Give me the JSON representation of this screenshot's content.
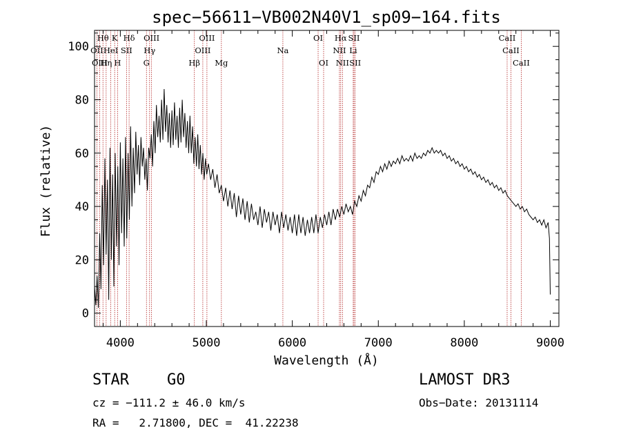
{
  "chart_data": {
    "type": "line",
    "title": "spec−56611−VB002N40V1_sp09−164.fits",
    "xlabel": "Wavelength (Å)",
    "ylabel": "Flux (relative)",
    "xlim": [
      3700,
      9100
    ],
    "ylim": [
      -5,
      106
    ],
    "x_ticks": [
      {
        "value": 4000,
        "label": "4000"
      },
      {
        "value": 5000,
        "label": "5000"
      },
      {
        "value": 6000,
        "label": "6000"
      },
      {
        "value": 7000,
        "label": "7000"
      },
      {
        "value": 8000,
        "label": "8000"
      },
      {
        "value": 9000,
        "label": "9000"
      }
    ],
    "y_ticks": [
      {
        "value": 0,
        "label": "0"
      },
      {
        "value": 20,
        "label": "20"
      },
      {
        "value": 40,
        "label": "40"
      },
      {
        "value": 60,
        "label": "60"
      },
      {
        "value": 80,
        "label": "80"
      },
      {
        "value": 100,
        "label": "100"
      }
    ],
    "grid": false,
    "line_color": "#b22222",
    "series": [
      {
        "name": "flux",
        "color": "#000000",
        "points": [
          [
            3700,
            10
          ],
          [
            3715,
            3
          ],
          [
            3730,
            14
          ],
          [
            3745,
            2
          ],
          [
            3760,
            30
          ],
          [
            3775,
            9
          ],
          [
            3790,
            48
          ],
          [
            3805,
            18
          ],
          [
            3820,
            58
          ],
          [
            3835,
            22
          ],
          [
            3850,
            50
          ],
          [
            3865,
            5
          ],
          [
            3880,
            62
          ],
          [
            3895,
            20
          ],
          [
            3910,
            52
          ],
          [
            3925,
            10
          ],
          [
            3940,
            60
          ],
          [
            3955,
            25
          ],
          [
            3970,
            55
          ],
          [
            3985,
            18
          ],
          [
            4000,
            64
          ],
          [
            4015,
            30
          ],
          [
            4030,
            58
          ],
          [
            4045,
            25
          ],
          [
            4060,
            66
          ],
          [
            4075,
            28
          ],
          [
            4090,
            60
          ],
          [
            4105,
            35
          ],
          [
            4120,
            70
          ],
          [
            4135,
            40
          ],
          [
            4150,
            62
          ],
          [
            4165,
            45
          ],
          [
            4180,
            68
          ],
          [
            4195,
            52
          ],
          [
            4210,
            63
          ],
          [
            4225,
            48
          ],
          [
            4240,
            66
          ],
          [
            4255,
            55
          ],
          [
            4270,
            62
          ],
          [
            4285,
            50
          ],
          [
            4300,
            58
          ],
          [
            4315,
            46
          ],
          [
            4330,
            62
          ],
          [
            4345,
            58
          ],
          [
            4360,
            67
          ],
          [
            4375,
            55
          ],
          [
            4390,
            72
          ],
          [
            4405,
            60
          ],
          [
            4420,
            78
          ],
          [
            4435,
            66
          ],
          [
            4450,
            74
          ],
          [
            4465,
            64
          ],
          [
            4480,
            80
          ],
          [
            4495,
            65
          ],
          [
            4510,
            84
          ],
          [
            4525,
            68
          ],
          [
            4540,
            78
          ],
          [
            4555,
            64
          ],
          [
            4570,
            75
          ],
          [
            4585,
            62
          ],
          [
            4600,
            76
          ],
          [
            4615,
            63
          ],
          [
            4630,
            79
          ],
          [
            4645,
            65
          ],
          [
            4660,
            74
          ],
          [
            4675,
            62
          ],
          [
            4690,
            77
          ],
          [
            4705,
            64
          ],
          [
            4720,
            80
          ],
          [
            4735,
            66
          ],
          [
            4750,
            75
          ],
          [
            4765,
            62
          ],
          [
            4780,
            72
          ],
          [
            4795,
            60
          ],
          [
            4810,
            74
          ],
          [
            4825,
            60
          ],
          [
            4840,
            70
          ],
          [
            4855,
            56
          ],
          [
            4870,
            66
          ],
          [
            4885,
            55
          ],
          [
            4900,
            67
          ],
          [
            4915,
            54
          ],
          [
            4930,
            63
          ],
          [
            4945,
            52
          ],
          [
            4960,
            60
          ],
          [
            4975,
            50
          ],
          [
            4990,
            58
          ],
          [
            5005,
            52
          ],
          [
            5025,
            56
          ],
          [
            5050,
            50
          ],
          [
            5075,
            54
          ],
          [
            5100,
            47
          ],
          [
            5125,
            52
          ],
          [
            5150,
            45
          ],
          [
            5175,
            48
          ],
          [
            5200,
            42
          ],
          [
            5225,
            47
          ],
          [
            5250,
            40
          ],
          [
            5275,
            46
          ],
          [
            5300,
            39
          ],
          [
            5325,
            45
          ],
          [
            5350,
            36
          ],
          [
            5375,
            44
          ],
          [
            5400,
            37
          ],
          [
            5425,
            43
          ],
          [
            5450,
            35
          ],
          [
            5475,
            42
          ],
          [
            5500,
            34
          ],
          [
            5525,
            41
          ],
          [
            5550,
            35
          ],
          [
            5575,
            38
          ],
          [
            5600,
            33
          ],
          [
            5625,
            40
          ],
          [
            5650,
            32
          ],
          [
            5675,
            39
          ],
          [
            5700,
            34
          ],
          [
            5725,
            38
          ],
          [
            5750,
            31
          ],
          [
            5775,
            38
          ],
          [
            5800,
            33
          ],
          [
            5825,
            37
          ],
          [
            5850,
            30
          ],
          [
            5875,
            38
          ],
          [
            5900,
            32
          ],
          [
            5925,
            37
          ],
          [
            5950,
            31
          ],
          [
            5975,
            36
          ],
          [
            6000,
            30
          ],
          [
            6025,
            37
          ],
          [
            6050,
            29
          ],
          [
            6075,
            37
          ],
          [
            6100,
            30
          ],
          [
            6125,
            36
          ],
          [
            6150,
            29
          ],
          [
            6175,
            35
          ],
          [
            6200,
            30
          ],
          [
            6225,
            36
          ],
          [
            6250,
            30
          ],
          [
            6275,
            37
          ],
          [
            6300,
            30
          ],
          [
            6325,
            36
          ],
          [
            6350,
            32
          ],
          [
            6375,
            37
          ],
          [
            6400,
            33
          ],
          [
            6425,
            38
          ],
          [
            6450,
            33
          ],
          [
            6475,
            39
          ],
          [
            6500,
            35
          ],
          [
            6525,
            39
          ],
          [
            6550,
            36
          ],
          [
            6575,
            40
          ],
          [
            6600,
            37
          ],
          [
            6625,
            41
          ],
          [
            6650,
            38
          ],
          [
            6675,
            40
          ],
          [
            6700,
            37
          ],
          [
            6725,
            42
          ],
          [
            6750,
            40
          ],
          [
            6775,
            44
          ],
          [
            6800,
            42
          ],
          [
            6825,
            46
          ],
          [
            6850,
            44
          ],
          [
            6875,
            48
          ],
          [
            6900,
            47
          ],
          [
            6925,
            51
          ],
          [
            6950,
            49
          ],
          [
            6975,
            53
          ],
          [
            7000,
            52
          ],
          [
            7025,
            55
          ],
          [
            7050,
            53
          ],
          [
            7075,
            56
          ],
          [
            7100,
            54
          ],
          [
            7125,
            57
          ],
          [
            7150,
            55
          ],
          [
            7175,
            57
          ],
          [
            7200,
            56
          ],
          [
            7225,
            58
          ],
          [
            7250,
            56
          ],
          [
            7275,
            59
          ],
          [
            7300,
            57
          ],
          [
            7325,
            58
          ],
          [
            7350,
            57
          ],
          [
            7375,
            59
          ],
          [
            7400,
            57
          ],
          [
            7425,
            60
          ],
          [
            7450,
            58
          ],
          [
            7475,
            59
          ],
          [
            7500,
            58
          ],
          [
            7525,
            60
          ],
          [
            7550,
            59
          ],
          [
            7575,
            61
          ],
          [
            7600,
            60
          ],
          [
            7625,
            62
          ],
          [
            7650,
            60
          ],
          [
            7675,
            61
          ],
          [
            7700,
            60
          ],
          [
            7725,
            61
          ],
          [
            7750,
            59
          ],
          [
            7775,
            60
          ],
          [
            7800,
            58
          ],
          [
            7825,
            59
          ],
          [
            7850,
            57
          ],
          [
            7875,
            58
          ],
          [
            7900,
            56
          ],
          [
            7925,
            57
          ],
          [
            7950,
            55
          ],
          [
            7975,
            56
          ],
          [
            8000,
            54
          ],
          [
            8025,
            55
          ],
          [
            8050,
            53
          ],
          [
            8075,
            54
          ],
          [
            8100,
            52
          ],
          [
            8125,
            53
          ],
          [
            8150,
            51
          ],
          [
            8175,
            52
          ],
          [
            8200,
            50
          ],
          [
            8225,
            51
          ],
          [
            8250,
            49
          ],
          [
            8275,
            50
          ],
          [
            8300,
            48
          ],
          [
            8325,
            49
          ],
          [
            8350,
            47
          ],
          [
            8375,
            48
          ],
          [
            8400,
            46
          ],
          [
            8425,
            47
          ],
          [
            8450,
            45
          ],
          [
            8475,
            46
          ],
          [
            8500,
            44
          ],
          [
            8525,
            43
          ],
          [
            8550,
            42
          ],
          [
            8575,
            41
          ],
          [
            8600,
            40
          ],
          [
            8625,
            41
          ],
          [
            8650,
            39
          ],
          [
            8675,
            40
          ],
          [
            8700,
            38
          ],
          [
            8725,
            39
          ],
          [
            8750,
            37
          ],
          [
            8775,
            36
          ],
          [
            8800,
            35
          ],
          [
            8825,
            36
          ],
          [
            8850,
            34
          ],
          [
            8875,
            35
          ],
          [
            8900,
            33
          ],
          [
            8925,
            35
          ],
          [
            8950,
            32
          ],
          [
            8975,
            34
          ],
          [
            8990,
            28
          ],
          [
            9000,
            7
          ]
        ]
      }
    ],
    "lines": [
      {
        "label": "Hθ",
        "x": 3798,
        "row": 0
      },
      {
        "label": "K",
        "x": 3934,
        "row": 0
      },
      {
        "label": "Hδ",
        "x": 4102,
        "row": 0
      },
      {
        "label": "OIII",
        "x": 4363,
        "row": 0
      },
      {
        "label": "OIII",
        "x": 5007,
        "row": 0
      },
      {
        "label": "OI",
        "x": 6300,
        "row": 0
      },
      {
        "label": "Hα",
        "x": 6563,
        "row": 0
      },
      {
        "label": "SII",
        "x": 6717,
        "row": 0
      },
      {
        "label": "CaII",
        "x": 8498,
        "row": 0
      },
      {
        "label": "OII",
        "x": 3727,
        "row": 1
      },
      {
        "label": "HeI",
        "x": 3889,
        "row": 1
      },
      {
        "label": "SII",
        "x": 4072,
        "row": 1
      },
      {
        "label": "Hγ",
        "x": 4340,
        "row": 1
      },
      {
        "label": "OIII",
        "x": 4959,
        "row": 1
      },
      {
        "label": "Na",
        "x": 5890,
        "row": 1
      },
      {
        "label": "NII",
        "x": 6548,
        "row": 1
      },
      {
        "label": "Li",
        "x": 6708,
        "row": 1
      },
      {
        "label": "CaII",
        "x": 8542,
        "row": 1
      },
      {
        "label": "OIII",
        "x": 3760,
        "row": 2
      },
      {
        "label": "Hη",
        "x": 3835,
        "row": 2
      },
      {
        "label": "H",
        "x": 3968,
        "row": 2
      },
      {
        "label": "G",
        "x": 4304,
        "row": 2
      },
      {
        "label": "Hβ",
        "x": 4861,
        "row": 2
      },
      {
        "label": "Mg",
        "x": 5175,
        "row": 2
      },
      {
        "label": "OI",
        "x": 6364,
        "row": 2
      },
      {
        "label": "NII",
        "x": 6583,
        "row": 2
      },
      {
        "label": "SII",
        "x": 6731,
        "row": 2
      },
      {
        "label": "CaII",
        "x": 8662,
        "row": 2
      }
    ]
  },
  "info": {
    "star_type": "STAR",
    "spectral_class": "G0",
    "survey": "LAMOST DR3",
    "cz": "cz = −111.2 ± 46.0 km/s",
    "obs_date": "Obs−Date: 20131114",
    "coords": "RA =   2.71800, DEC =  41.22238"
  }
}
